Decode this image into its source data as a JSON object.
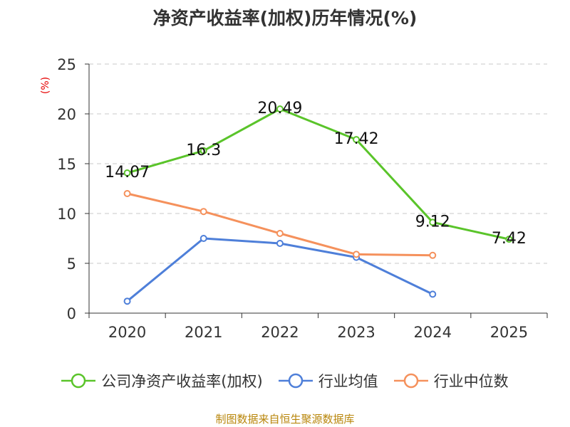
{
  "chart_data": {
    "type": "line",
    "title": "净资产收益率(加权)历年情况(%)",
    "ylabel": "(%)",
    "xlabel": "",
    "categories": [
      "2020",
      "2021",
      "2022",
      "2023",
      "2024",
      "2025"
    ],
    "ylim": [
      0,
      25
    ],
    "yticks": [
      0,
      5,
      10,
      15,
      20,
      25
    ],
    "grid": true,
    "legend_position": "bottom",
    "series": [
      {
        "name": "公司净资产收益率(加权)",
        "color": "#5ac42a",
        "values": [
          14.07,
          16.3,
          20.49,
          17.42,
          9.12,
          7.42
        ],
        "labels": [
          "14.07",
          "16.3",
          "20.49",
          "17.42",
          "9.12",
          "7.42"
        ],
        "show_labels": true
      },
      {
        "name": "行业均值",
        "color": "#4e7fd9",
        "values": [
          1.2,
          7.5,
          7.0,
          5.6,
          1.9,
          null
        ],
        "show_labels": false
      },
      {
        "name": "行业中位数",
        "color": "#f5915c",
        "values": [
          12.0,
          10.2,
          8.0,
          5.9,
          5.8,
          null
        ],
        "show_labels": false
      }
    ]
  },
  "source": "制图数据来自恒生聚源数据库"
}
